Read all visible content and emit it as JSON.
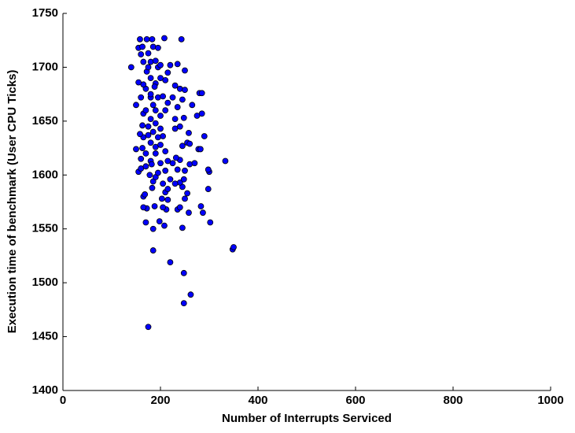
{
  "chart_data": {
    "type": "scatter",
    "xlabel": "Number of Interrupts Serviced",
    "ylabel": "Execution time of benchmark (User CPU Ticks)",
    "color": "#0000ff",
    "xlim": [
      0,
      1000
    ],
    "xticks": [
      0,
      200,
      400,
      600,
      800,
      1000
    ],
    "ylim": [
      1400,
      1750
    ],
    "yticks": [
      1400,
      1450,
      1500,
      1550,
      1600,
      1650,
      1700,
      1750
    ],
    "x": [
      175,
      248,
      262,
      248,
      220,
      185,
      348,
      350,
      302,
      170,
      245,
      185,
      208,
      198,
      258,
      287,
      283,
      235,
      172,
      165,
      212,
      188,
      205,
      240,
      165,
      168,
      203,
      215,
      250,
      210,
      255,
      298,
      183,
      215,
      245,
      240,
      185,
      205,
      230,
      190,
      220,
      248,
      195,
      210,
      235,
      250,
      300,
      298,
      155,
      160,
      170,
      200,
      225,
      260,
      270,
      333,
      180,
      215,
      240,
      232,
      190,
      210,
      150,
      163,
      190,
      200,
      245,
      255,
      260,
      278,
      282,
      180,
      165,
      175,
      158,
      205,
      290,
      185,
      200,
      230,
      240,
      258,
      163,
      190,
      180,
      230,
      248,
      275,
      285,
      200,
      165,
      170,
      190,
      210,
      235,
      215,
      265,
      150,
      160,
      180,
      195,
      205,
      225,
      245,
      280,
      285,
      170,
      165,
      190,
      210,
      230,
      240,
      250,
      155,
      180,
      172,
      215,
      250,
      140,
      175,
      195,
      200,
      220,
      235,
      165,
      180,
      190,
      160,
      175,
      155,
      163,
      185,
      195,
      158,
      172,
      183,
      208,
      243,
      180,
      185,
      175,
      195,
      170,
      178,
      182,
      160,
      188,
      200
    ],
    "y": [
      1459,
      1481,
      1489,
      1509,
      1519,
      1530,
      1531,
      1533,
      1556,
      1556,
      1551,
      1550,
      1553,
      1557,
      1565,
      1565,
      1571,
      1568,
      1569,
      1570,
      1568,
      1571,
      1570,
      1570,
      1580,
      1582,
      1578,
      1577,
      1578,
      1584,
      1583,
      1587,
      1588,
      1587,
      1589,
      1593,
      1594,
      1592,
      1592,
      1598,
      1596,
      1596,
      1602,
      1604,
      1605,
      1604,
      1603,
      1605,
      1603,
      1606,
      1608,
      1611,
      1611,
      1610,
      1611,
      1613,
      1613,
      1613,
      1614,
      1616,
      1620,
      1622,
      1624,
      1625,
      1626,
      1628,
      1627,
      1630,
      1629,
      1624,
      1624,
      1630,
      1635,
      1637,
      1638,
      1636,
      1636,
      1640,
      1643,
      1643,
      1645,
      1639,
      1646,
      1648,
      1652,
      1652,
      1653,
      1655,
      1657,
      1655,
      1657,
      1660,
      1660,
      1660,
      1663,
      1667,
      1665,
      1665,
      1672,
      1672,
      1672,
      1673,
      1672,
      1670,
      1676,
      1676,
      1680,
      1684,
      1685,
      1688,
      1683,
      1680,
      1679,
      1686,
      1690,
      1696,
      1695,
      1697,
      1700,
      1700,
      1700,
      1702,
      1702,
      1703,
      1705,
      1705,
      1706,
      1712,
      1713,
      1718,
      1719,
      1719,
      1718,
      1726,
      1726,
      1726,
      1727,
      1726,
      1675,
      1665,
      1645,
      1635,
      1620,
      1600,
      1610,
      1615,
      1682,
      1690
    ]
  }
}
